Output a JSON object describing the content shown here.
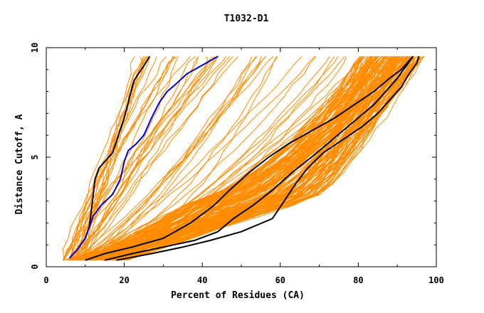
{
  "chart_data": {
    "type": "line",
    "title": "T1032-D1",
    "xlabel": "Percent of Residues (CA)",
    "ylabel": "Distance Cutoff, A",
    "xlim": [
      0,
      100
    ],
    "ylim": [
      0,
      10
    ],
    "x_ticks": [
      "0",
      "20",
      "40",
      "60",
      "80",
      "100"
    ],
    "y_ticks": [
      "0",
      "5",
      "10"
    ],
    "grid": false,
    "legend": "none",
    "colors": {
      "background_models": "#ff8c00",
      "highlight_black": "#000000",
      "highlight_blue": "#0000cc",
      "axes": "#000000"
    },
    "series": [
      {
        "color": "#000000",
        "points": [
          [
            6,
            0.4
          ],
          [
            8,
            0.8
          ],
          [
            10,
            1.3
          ],
          [
            11,
            1.8
          ],
          [
            11.5,
            2.5
          ],
          [
            12,
            3.2
          ],
          [
            12.5,
            4.0
          ],
          [
            13.5,
            4.5
          ],
          [
            15,
            4.8
          ],
          [
            17,
            5.2
          ],
          [
            18.5,
            6.0
          ],
          [
            20,
            6.8
          ],
          [
            21,
            7.5
          ],
          [
            22.5,
            8.5
          ],
          [
            24,
            8.9
          ],
          [
            25.5,
            9.3
          ],
          [
            26.5,
            9.6
          ]
        ]
      },
      {
        "color": "#0000cc",
        "points": [
          [
            6,
            0.4
          ],
          [
            8,
            0.8
          ],
          [
            10,
            1.3
          ],
          [
            11,
            1.8
          ],
          [
            12,
            2.3
          ],
          [
            14,
            2.8
          ],
          [
            17,
            3.3
          ],
          [
            19,
            4.0
          ],
          [
            20,
            4.8
          ],
          [
            21,
            5.3
          ],
          [
            23,
            5.6
          ],
          [
            25,
            6.0
          ],
          [
            27,
            6.8
          ],
          [
            29,
            7.5
          ],
          [
            31,
            8.0
          ],
          [
            33,
            8.3
          ],
          [
            36,
            8.8
          ],
          [
            40,
            9.2
          ],
          [
            44,
            9.6
          ]
        ]
      },
      {
        "color": "#000000",
        "points": [
          [
            10,
            0.3
          ],
          [
            15,
            0.6
          ],
          [
            22,
            0.9
          ],
          [
            30,
            1.3
          ],
          [
            37,
            2.0
          ],
          [
            43,
            2.8
          ],
          [
            47,
            3.5
          ],
          [
            52,
            4.3
          ],
          [
            57,
            5.0
          ],
          [
            62,
            5.6
          ],
          [
            68,
            6.2
          ],
          [
            74,
            6.8
          ],
          [
            79,
            7.4
          ],
          [
            84,
            8.0
          ],
          [
            88,
            8.6
          ],
          [
            91,
            9.0
          ],
          [
            93,
            9.4
          ],
          [
            94,
            9.6
          ]
        ]
      },
      {
        "color": "#000000",
        "points": [
          [
            15,
            0.3
          ],
          [
            22,
            0.6
          ],
          [
            30,
            0.9
          ],
          [
            38,
            1.2
          ],
          [
            44,
            1.6
          ],
          [
            48,
            2.2
          ],
          [
            53,
            2.8
          ],
          [
            58,
            3.5
          ],
          [
            63,
            4.3
          ],
          [
            68,
            5.0
          ],
          [
            72,
            5.6
          ],
          [
            76,
            6.2
          ],
          [
            80,
            6.8
          ],
          [
            84,
            7.4
          ],
          [
            87,
            8.0
          ],
          [
            90,
            8.6
          ],
          [
            92,
            9.1
          ],
          [
            94,
            9.6
          ]
        ]
      },
      {
        "color": "#000000",
        "points": [
          [
            18,
            0.3
          ],
          [
            27,
            0.6
          ],
          [
            35,
            0.9
          ],
          [
            42,
            1.2
          ],
          [
            50,
            1.6
          ],
          [
            58,
            2.2
          ],
          [
            61,
            3.0
          ],
          [
            64,
            3.8
          ],
          [
            67,
            4.5
          ],
          [
            71,
            5.2
          ],
          [
            76,
            5.8
          ],
          [
            81,
            6.4
          ],
          [
            85,
            7.0
          ],
          [
            88,
            7.6
          ],
          [
            91,
            8.2
          ],
          [
            93,
            8.8
          ],
          [
            95,
            9.3
          ],
          [
            95.5,
            9.6
          ]
        ]
      }
    ]
  }
}
